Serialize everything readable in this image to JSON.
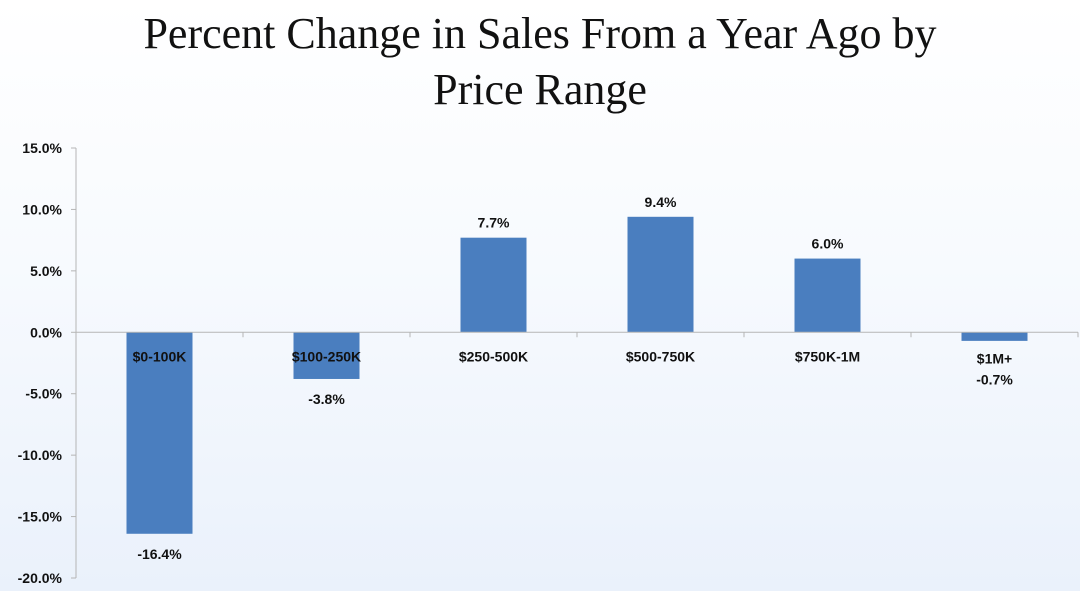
{
  "chart_data": {
    "type": "bar",
    "title_lines": [
      "Percent Change in Sales From a Year Ago by",
      "Price Range"
    ],
    "categories": [
      "$0-100K",
      "$100-250K",
      "$250-500K",
      "$500-750K",
      "$750K-1M",
      "$1M+"
    ],
    "values": [
      -16.4,
      -3.8,
      7.7,
      9.4,
      6.0,
      -0.7
    ],
    "data_labels": [
      "-16.4%",
      "-3.8%",
      "7.7%",
      "9.4%",
      "6.0%",
      "-0.7%"
    ],
    "y_ticks": [
      15,
      10,
      5,
      0,
      -5,
      -10,
      -15,
      -20
    ],
    "y_tick_labels": [
      "15.0%",
      "10.0%",
      "5.0%",
      "0.0%",
      "-5.0%",
      "-10.0%",
      "-15.0%",
      "-20.0%"
    ],
    "ylim": [
      -20,
      15
    ],
    "grid": false,
    "legend": "none",
    "colors": {
      "bar": "#4a7ebf",
      "axis": "#b5b5b5",
      "text": "#111111"
    }
  }
}
